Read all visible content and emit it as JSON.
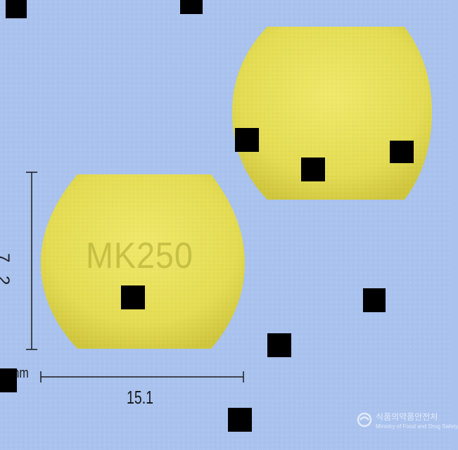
{
  "image": {
    "background_color": "#a9c2ee",
    "pill_color": "#e8e05a",
    "shading_color": "#c9c13a"
  },
  "pill_front": {
    "imprint": "MK250"
  },
  "measurements": {
    "height_value": "7.2",
    "width_value": "15.1",
    "unit": "mm"
  },
  "watermark": {
    "org_korean": "식품의약품안전처",
    "org_english": "Ministry of Food and Drug Safety",
    "emblem_icon": "government-emblem-icon"
  }
}
